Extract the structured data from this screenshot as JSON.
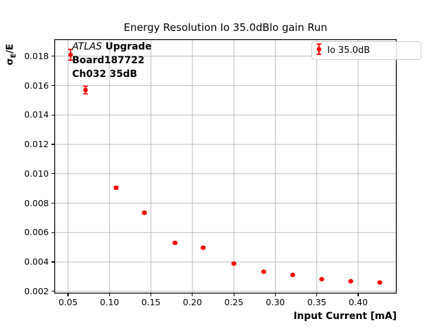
{
  "colors": {
    "data": "#ff0000",
    "grid": "#bdbdbd",
    "axis": "#000000",
    "legend_border": "#cccccc",
    "background": "#ffffff"
  },
  "annotation": {
    "line1_italic": "ATLAS",
    "line1_bold": "Upgrade",
    "line2": "Board187722",
    "line3": "Ch032 35dB"
  },
  "chart_data": {
    "type": "scatter",
    "title": "Energy Resolution Io 35.0dBlo gain Run",
    "xlabel": "Input Current [mA]",
    "ylabel": "σE/E",
    "ylabel_parts": {
      "sigma": "σ",
      "subscript": "E",
      "rest": "/E"
    },
    "grid": true,
    "legend_position": "upper right",
    "xlim": [
      0.0334,
      0.4464
    ],
    "ylim": [
      0.00185,
      0.01916
    ],
    "xticks": [
      {
        "value": 0.05,
        "label": "0.05"
      },
      {
        "value": 0.1,
        "label": "0.10"
      },
      {
        "value": 0.15,
        "label": "0.15"
      },
      {
        "value": 0.2,
        "label": "0.20"
      },
      {
        "value": 0.25,
        "label": "0.25"
      },
      {
        "value": 0.3,
        "label": "0.30"
      },
      {
        "value": 0.35,
        "label": "0.35"
      },
      {
        "value": 0.4,
        "label": "0.40"
      }
    ],
    "yticks": [
      {
        "value": 0.002,
        "label": "0.002"
      },
      {
        "value": 0.004,
        "label": "0.004"
      },
      {
        "value": 0.006,
        "label": "0.006"
      },
      {
        "value": 0.008,
        "label": "0.008"
      },
      {
        "value": 0.01,
        "label": "0.010"
      },
      {
        "value": 0.012,
        "label": "0.012"
      },
      {
        "value": 0.014,
        "label": "0.014"
      },
      {
        "value": 0.016,
        "label": "0.016"
      },
      {
        "value": 0.018,
        "label": "0.018"
      }
    ],
    "legend": {
      "entries": [
        {
          "label": "Io 35.0dB",
          "color": "#ff0000",
          "marker": "errorbar-dot"
        }
      ]
    },
    "series": [
      {
        "name": "Io 35.0dB",
        "color": "#ff0000",
        "marker": "circle",
        "x": [
          0.053,
          0.071,
          0.108,
          0.142,
          0.179,
          0.213,
          0.25,
          0.286,
          0.321,
          0.356,
          0.391,
          0.426
        ],
        "y": [
          0.0181,
          0.0157,
          0.00905,
          0.00735,
          0.0053,
          0.00497,
          0.00389,
          0.00334,
          0.00312,
          0.00283,
          0.00269,
          0.0026
        ],
        "yerr": [
          0.00037,
          0.00026,
          8e-05,
          7e-05,
          6e-05,
          5e-05,
          5e-05,
          4e-05,
          4e-05,
          3e-05,
          3e-05,
          3e-05
        ]
      }
    ]
  }
}
